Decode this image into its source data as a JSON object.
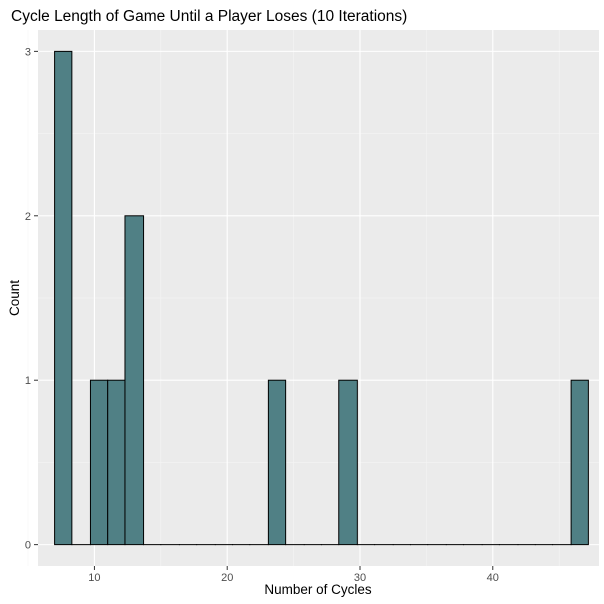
{
  "chart_data": {
    "type": "bar",
    "title": "Cycle Length of Game Until a Player Loses (10 Iterations)",
    "xlabel": "Number of Cycles",
    "ylabel": "Count",
    "xlim": [
      5.75,
      48
    ],
    "ylim": [
      -0.13,
      3.13
    ],
    "x_ticks": [
      10,
      20,
      30,
      40
    ],
    "x_minor_ticks": [
      5,
      15,
      25,
      35,
      45
    ],
    "y_ticks": [
      0,
      1,
      2,
      3
    ],
    "y_minor_ticks": [
      0.5,
      1.5,
      2.5
    ],
    "grid": true,
    "bin_width": 1.34,
    "bins": [
      {
        "x0": 7.0,
        "x1": 8.3,
        "count": 3
      },
      {
        "x0": 8.3,
        "x1": 9.7,
        "count": 0
      },
      {
        "x0": 9.7,
        "x1": 11.0,
        "count": 1
      },
      {
        "x0": 11.0,
        "x1": 12.3,
        "count": 1
      },
      {
        "x0": 12.3,
        "x1": 13.7,
        "count": 2
      },
      {
        "x0": 13.7,
        "x1": 15.0,
        "count": 0
      },
      {
        "x0": 15.0,
        "x1": 16.4,
        "count": 0
      },
      {
        "x0": 16.4,
        "x1": 17.7,
        "count": 0
      },
      {
        "x0": 17.7,
        "x1": 19.1,
        "count": 0
      },
      {
        "x0": 19.1,
        "x1": 20.4,
        "count": 0
      },
      {
        "x0": 20.4,
        "x1": 21.7,
        "count": 0
      },
      {
        "x0": 21.7,
        "x1": 23.1,
        "count": 0
      },
      {
        "x0": 23.1,
        "x1": 24.4,
        "count": 1
      },
      {
        "x0": 24.4,
        "x1": 25.8,
        "count": 0
      },
      {
        "x0": 25.8,
        "x1": 27.1,
        "count": 0
      },
      {
        "x0": 27.1,
        "x1": 28.4,
        "count": 0
      },
      {
        "x0": 28.4,
        "x1": 29.8,
        "count": 1
      },
      {
        "x0": 29.8,
        "x1": 31.1,
        "count": 0
      },
      {
        "x0": 31.1,
        "x1": 32.5,
        "count": 0
      },
      {
        "x0": 32.5,
        "x1": 33.8,
        "count": 0
      },
      {
        "x0": 33.8,
        "x1": 35.1,
        "count": 0
      },
      {
        "x0": 35.1,
        "x1": 36.5,
        "count": 0
      },
      {
        "x0": 36.5,
        "x1": 37.8,
        "count": 0
      },
      {
        "x0": 37.8,
        "x1": 39.2,
        "count": 0
      },
      {
        "x0": 39.2,
        "x1": 40.5,
        "count": 0
      },
      {
        "x0": 40.5,
        "x1": 41.9,
        "count": 0
      },
      {
        "x0": 41.9,
        "x1": 43.2,
        "count": 0
      },
      {
        "x0": 43.2,
        "x1": 44.5,
        "count": 0
      },
      {
        "x0": 44.5,
        "x1": 45.9,
        "count": 0
      },
      {
        "x0": 45.9,
        "x1": 47.2,
        "count": 1
      }
    ],
    "colors": {
      "bar_fill": "#508085",
      "bar_outline": "#000000",
      "panel_background": "#ebebeb",
      "grid_major": "#ffffff",
      "grid_minor": "#f5f5f5",
      "tick_mark": "#333333",
      "tick_text": "#4d4d4d"
    }
  }
}
